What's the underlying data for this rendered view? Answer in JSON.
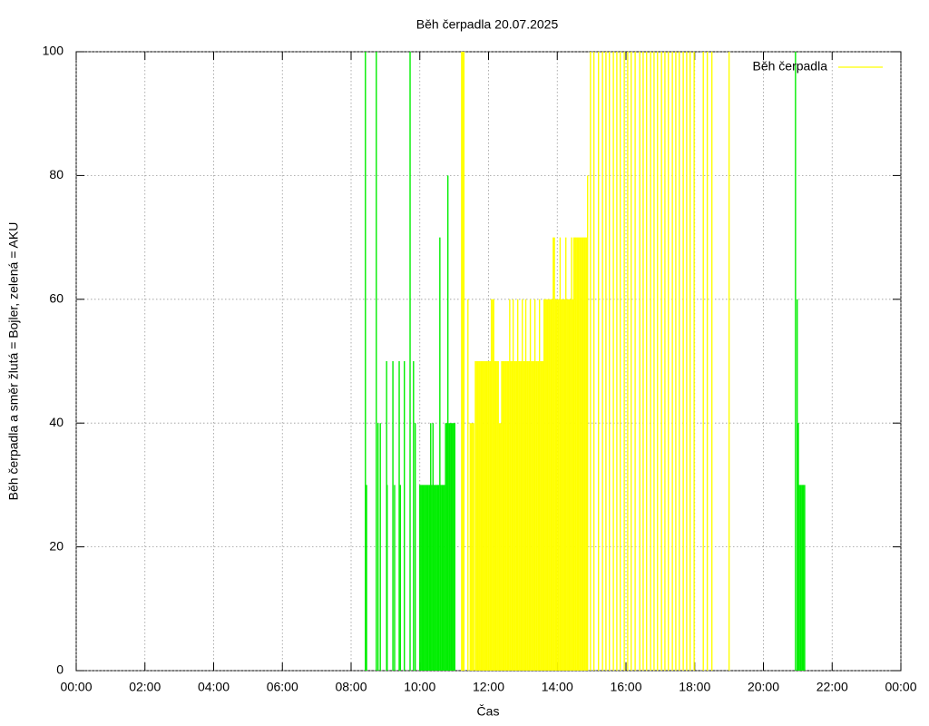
{
  "chart_data": {
    "type": "impulse",
    "title": "Běh čerpadla 20.07.2025",
    "x_label": "Čas",
    "y_label": "Běh čerpadla a směr žlutá = Bojler, zelená = AKU",
    "xlim": [
      0,
      1440
    ],
    "ylim": [
      0,
      100
    ],
    "xticks": [
      {
        "value": 0,
        "label": "00:00"
      },
      {
        "value": 120,
        "label": "02:00"
      },
      {
        "value": 240,
        "label": "04:00"
      },
      {
        "value": 360,
        "label": "06:00"
      },
      {
        "value": 480,
        "label": "08:00"
      },
      {
        "value": 600,
        "label": "10:00"
      },
      {
        "value": 720,
        "label": "12:00"
      },
      {
        "value": 840,
        "label": "14:00"
      },
      {
        "value": 960,
        "label": "16:00"
      },
      {
        "value": 1080,
        "label": "18:00"
      },
      {
        "value": 1200,
        "label": "20:00"
      },
      {
        "value": 1320,
        "label": "22:00"
      },
      {
        "value": 1440,
        "label": "00:00"
      }
    ],
    "yticks": [
      0,
      20,
      40,
      60,
      80,
      100
    ],
    "grid": true,
    "legend": "top-right",
    "series": [
      {
        "name": "Běh čerpadla",
        "color": "#ffff00",
        "x": [
          673,
          675,
          677,
          684,
          688,
          690,
          692,
          694,
          697,
          699,
          701,
          703,
          705,
          707,
          709,
          711,
          713,
          715,
          717,
          719,
          721,
          723,
          725,
          727,
          729,
          731,
          733,
          735,
          737,
          739,
          741,
          743,
          745,
          747,
          749,
          751,
          753,
          755,
          757,
          759,
          761,
          763,
          765,
          767,
          769,
          771,
          773,
          775,
          777,
          779,
          781,
          783,
          785,
          787,
          789,
          791,
          793,
          795,
          797,
          799,
          801,
          803,
          805,
          807,
          809,
          811,
          813,
          815,
          817,
          819,
          821,
          823,
          825,
          827,
          829,
          831,
          833,
          835,
          837,
          839,
          841,
          843,
          845,
          847,
          849,
          851,
          853,
          855,
          857,
          859,
          861,
          863,
          865,
          867,
          869,
          871,
          873,
          875,
          877,
          879,
          881,
          883,
          885,
          887,
          889,
          891,
          893,
          898,
          904,
          912,
          919,
          925,
          931,
          938,
          944,
          950,
          957,
          963,
          969,
          976,
          984,
          990,
          996,
          1003,
          1009,
          1015,
          1022,
          1028,
          1034,
          1041,
          1047,
          1053,
          1060,
          1066,
          1072,
          1079,
          1095,
          1102,
          1110,
          1140
        ],
        "values": [
          100,
          100,
          100,
          60,
          40,
          40,
          40,
          40,
          50,
          50,
          50,
          50,
          50,
          50,
          50,
          50,
          50,
          50,
          50,
          50,
          50,
          50,
          60,
          60,
          60,
          50,
          50,
          50,
          50,
          40,
          40,
          50,
          50,
          50,
          50,
          50,
          50,
          50,
          60,
          50,
          50,
          60,
          50,
          50,
          50,
          60,
          50,
          50,
          50,
          60,
          50,
          50,
          60,
          50,
          50,
          50,
          60,
          50,
          50,
          50,
          60,
          50,
          50,
          50,
          60,
          50,
          50,
          50,
          60,
          60,
          60,
          60,
          60,
          60,
          60,
          60,
          70,
          70,
          60,
          60,
          60,
          60,
          70,
          60,
          60,
          60,
          60,
          70,
          60,
          60,
          60,
          60,
          70,
          60,
          70,
          70,
          70,
          70,
          70,
          70,
          70,
          70,
          70,
          70,
          70,
          70,
          80,
          100,
          100,
          100,
          100,
          100,
          100,
          100,
          100,
          100,
          100,
          100,
          100,
          100,
          100,
          100,
          100,
          100,
          100,
          100,
          100,
          100,
          100,
          100,
          100,
          100,
          100,
          100,
          100,
          100,
          100,
          100,
          100,
          100
        ]
      },
      {
        "color": "#00ee00",
        "x": [
          505,
          507,
          524,
          527,
          531,
          542,
          543,
          553,
          556,
          564,
          566,
          573,
          583,
          589,
          592,
          600,
          602,
          604,
          606,
          608,
          610,
          612,
          614,
          616,
          618,
          619,
          621,
          623,
          625,
          627,
          629,
          631,
          633,
          635,
          637,
          639,
          641,
          643,
          645,
          647,
          649,
          651,
          653,
          655,
          657,
          659,
          661,
          1256,
          1259,
          1261,
          1262,
          1264,
          1266,
          1268,
          1270,
          1272
        ],
        "values": [
          100,
          30,
          100,
          40,
          40,
          50,
          30,
          50,
          30,
          50,
          30,
          50,
          100,
          50,
          40,
          30,
          30,
          30,
          30,
          30,
          30,
          30,
          30,
          30,
          30,
          40,
          30,
          40,
          30,
          30,
          30,
          30,
          30,
          70,
          30,
          30,
          30,
          30,
          40,
          40,
          80,
          40,
          40,
          40,
          40,
          40,
          40,
          100,
          60,
          40,
          30,
          30,
          30,
          30,
          30,
          30
        ]
      }
    ]
  }
}
